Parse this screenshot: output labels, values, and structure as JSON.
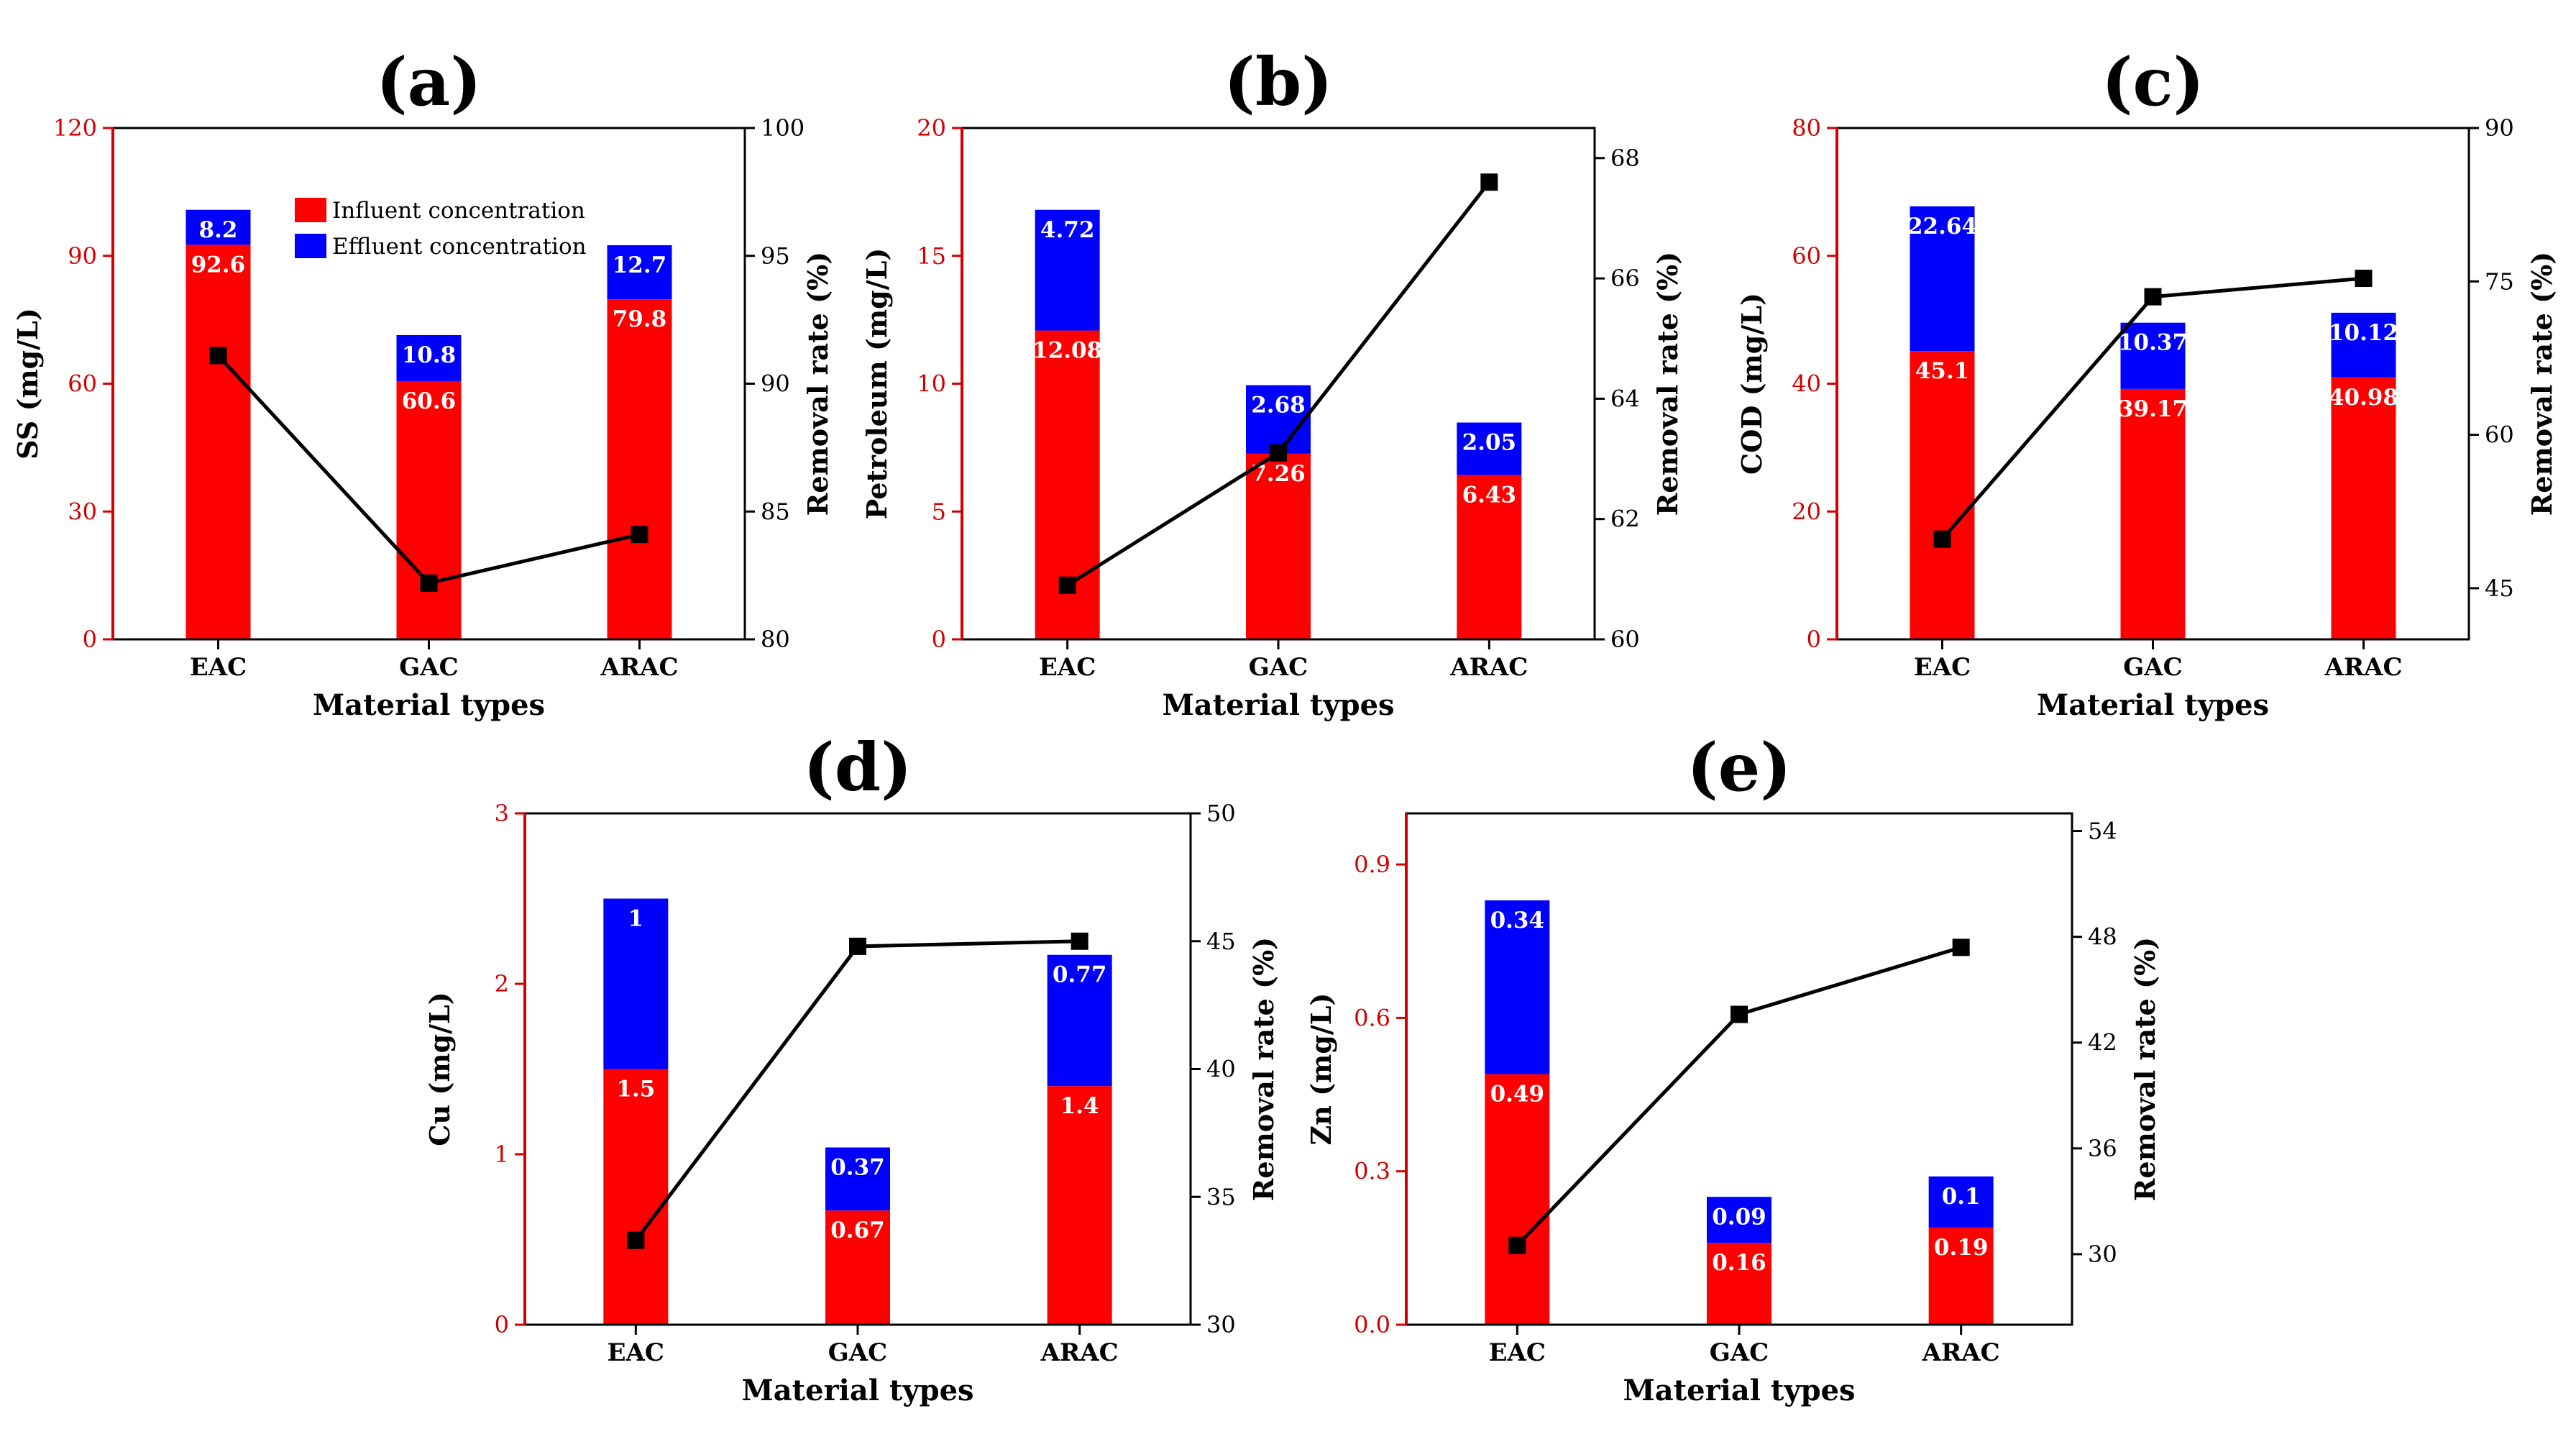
{
  "figure": {
    "colors": {
      "influent": "#ff0000",
      "effluent": "#0000ff",
      "line": "#000000",
      "left_axis": "#d40000",
      "right_axis": "#000000"
    },
    "legend": {
      "placement": "top-right (panel a)",
      "entries": [
        "Influent concentration",
        "Effluent concentration"
      ]
    }
  },
  "chart_data": [
    {
      "panel": "(a)",
      "type": "bar",
      "categories": [
        "EAC",
        "GAC",
        "ARAC"
      ],
      "xlabel": "Material types",
      "ylabel": "SS (mg/L)",
      "y2label": "Removal rate (%)",
      "ylim": [
        0,
        120
      ],
      "yticks": [
        "0",
        "30",
        "60",
        "90",
        "120"
      ],
      "y2lim": [
        80,
        100
      ],
      "y2ticks": [
        "80",
        "85",
        "90",
        "95",
        "100"
      ],
      "series": [
        {
          "name": "Influent concentration",
          "values": [
            92.6,
            60.6,
            79.8
          ],
          "labels": [
            "92.6",
            "60.6",
            "79.8"
          ]
        },
        {
          "name": "Effluent concentration",
          "values": [
            8.2,
            10.8,
            12.7
          ],
          "labels": [
            "8.2",
            "10.8",
            "12.7"
          ]
        }
      ],
      "removal_rate": [
        91.1,
        82.2,
        84.1
      ]
    },
    {
      "panel": "(b)",
      "type": "bar",
      "categories": [
        "EAC",
        "GAC",
        "ARAC"
      ],
      "xlabel": "Material types",
      "ylabel": "Petroleum (mg/L)",
      "y2label": "Removal rate (%)",
      "ylim": [
        0,
        20
      ],
      "yticks": [
        "0",
        "5",
        "10",
        "15",
        "20"
      ],
      "y2lim": [
        60,
        68.5
      ],
      "y2ticks": [
        "60",
        "62",
        "64",
        "66",
        "68"
      ],
      "series": [
        {
          "name": "Influent concentration",
          "values": [
            12.08,
            7.26,
            6.43
          ],
          "labels": [
            "12.08",
            "7.26",
            "6.43"
          ]
        },
        {
          "name": "Effluent concentration",
          "values": [
            4.72,
            2.68,
            2.05
          ],
          "labels": [
            "4.72",
            "2.68",
            "2.05"
          ]
        }
      ],
      "removal_rate": [
        60.9,
        63.1,
        67.6
      ]
    },
    {
      "panel": "(c)",
      "type": "bar",
      "categories": [
        "EAC",
        "GAC",
        "ARAC"
      ],
      "xlabel": "Material types",
      "ylabel": "COD (mg/L)",
      "y2label": "Removal rate (%)",
      "ylim": [
        0,
        80
      ],
      "yticks": [
        "0",
        "20",
        "40",
        "60",
        "80"
      ],
      "y2lim": [
        40,
        90
      ],
      "y2ticks": [
        "45",
        "60",
        "75",
        "90"
      ],
      "series": [
        {
          "name": "Influent concentration",
          "values": [
            45.1,
            39.17,
            40.98
          ],
          "labels": [
            "45.1",
            "39.17",
            "40.98"
          ]
        },
        {
          "name": "Effluent concentration",
          "values": [
            22.64,
            10.37,
            10.12
          ],
          "labels": [
            "22.64",
            "10.37",
            "10.12"
          ]
        }
      ],
      "removal_rate": [
        49.8,
        73.5,
        75.3
      ]
    },
    {
      "panel": "(d)",
      "type": "bar",
      "categories": [
        "EAC",
        "GAC",
        "ARAC"
      ],
      "xlabel": "Material types",
      "ylabel": "Cu (mg/L)",
      "y2label": "Removal rate (%)",
      "ylim": [
        0,
        3
      ],
      "yticks": [
        "0",
        "1",
        "2",
        "3"
      ],
      "y2lim": [
        30,
        50
      ],
      "y2ticks": [
        "30",
        "35",
        "40",
        "45",
        "50"
      ],
      "series": [
        {
          "name": "Influent concentration",
          "values": [
            1.5,
            0.67,
            1.4
          ],
          "labels": [
            "1.5",
            "0.67",
            "1.4"
          ]
        },
        {
          "name": "Effluent concentration",
          "values": [
            1.0,
            0.37,
            0.77
          ],
          "labels": [
            "1",
            "0.37",
            "0.77"
          ]
        }
      ],
      "removal_rate": [
        33.3,
        44.8,
        45.0
      ]
    },
    {
      "panel": "(e)",
      "type": "bar",
      "categories": [
        "EAC",
        "GAC",
        "ARAC"
      ],
      "xlabel": "Material types",
      "ylabel": "Zn (mg/L)",
      "y2label": "Removal rate (%)",
      "ylim": [
        0,
        1.0
      ],
      "yticks": [
        "0.0",
        "0.3",
        "0.6",
        "0.9"
      ],
      "y2lim": [
        26,
        55
      ],
      "y2ticks": [
        "30",
        "36",
        "42",
        "48",
        "54"
      ],
      "series": [
        {
          "name": "Influent concentration",
          "values": [
            0.49,
            0.16,
            0.19
          ],
          "labels": [
            "0.49",
            "0.16",
            "0.19"
          ]
        },
        {
          "name": "Effluent concentration",
          "values": [
            0.34,
            0.09,
            0.1
          ],
          "labels": [
            "0.34",
            "0.09",
            "0.1"
          ]
        }
      ],
      "removal_rate": [
        30.5,
        43.6,
        47.4
      ]
    }
  ]
}
